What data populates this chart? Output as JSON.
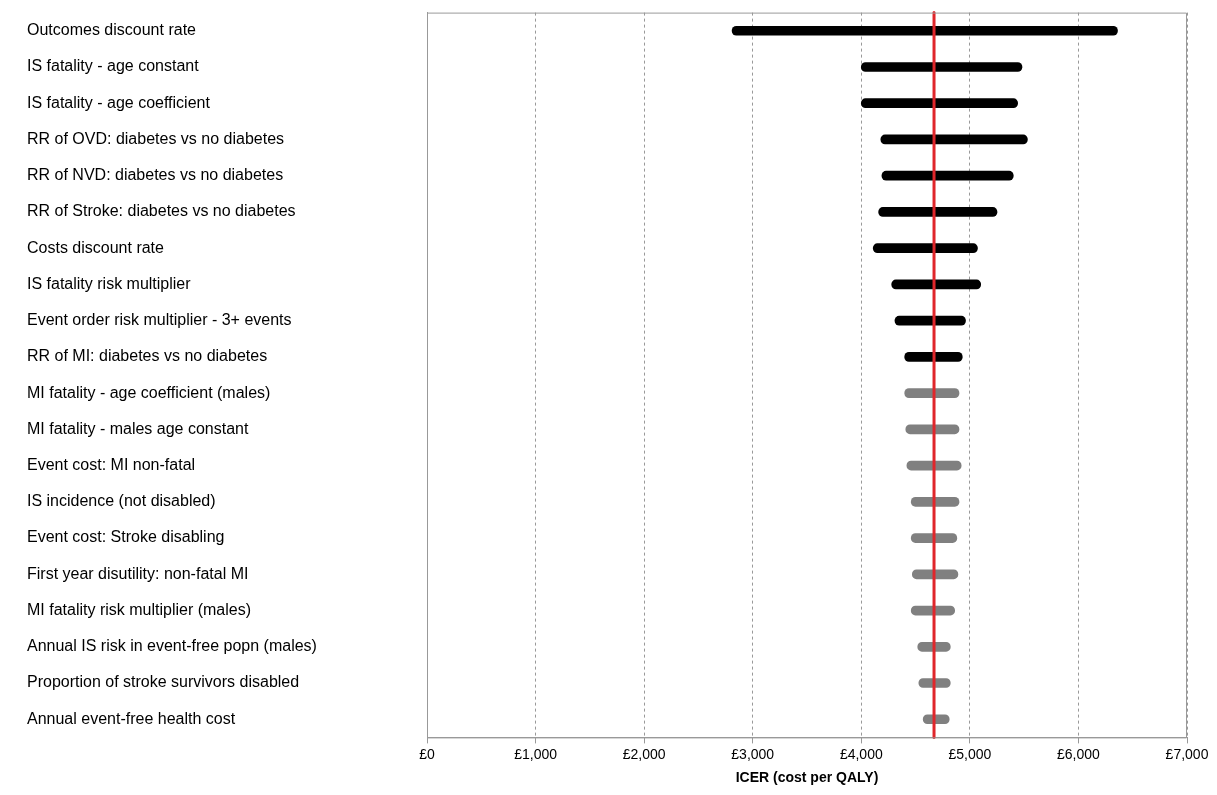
{
  "chart_data": {
    "type": "bar",
    "orientation": "horizontal",
    "xlabel": "ICER (cost per QALY)",
    "categories": [
      "Outcomes discount rate",
      "IS fatality - age constant",
      "IS fatality - age coefficient",
      "RR of OVD: diabetes vs no diabetes",
      "RR of NVD: diabetes vs no diabetes",
      "RR of Stroke: diabetes vs no diabetes",
      "Costs discount rate",
      "IS fatality risk multiplier",
      "Event order risk multiplier - 3+ events",
      "RR of MI: diabetes vs no diabetes",
      "MI fatality - age coefficient (males)",
      "MI fatality - males age constant",
      "Event cost: MI non-fatal",
      "IS incidence (not disabled)",
      "Event cost: Stroke disabling",
      "First year disutility: non-fatal MI",
      "MI fatality risk multiplier (males)",
      "Annual IS risk in event-free popn (males)",
      "Proportion of stroke survivors disabled",
      "Annual event-free health cost"
    ],
    "base": [
      2810,
      4000,
      4000,
      4180,
      4190,
      4160,
      4110,
      4280,
      4310,
      4400,
      4400,
      4410,
      4420,
      4460,
      4460,
      4470,
      4460,
      4520,
      4530,
      4570
    ],
    "values": [
      3550,
      1480,
      1440,
      1350,
      1210,
      1090,
      960,
      820,
      650,
      530,
      500,
      490,
      500,
      440,
      420,
      420,
      400,
      300,
      290,
      240
    ],
    "colors": [
      "#000000",
      "#000000",
      "#000000",
      "#000000",
      "#000000",
      "#000000",
      "#000000",
      "#000000",
      "#000000",
      "#000000",
      "#808080",
      "#808080",
      "#808080",
      "#808080",
      "#808080",
      "#808080",
      "#808080",
      "#808080",
      "#808080",
      "#808080"
    ],
    "xlim": [
      0,
      7000
    ],
    "xticks": [
      {
        "value": 0,
        "label": "£0"
      },
      {
        "value": 1000,
        "label": "£1,000"
      },
      {
        "value": 2000,
        "label": "£2,000"
      },
      {
        "value": 3000,
        "label": "£3,000"
      },
      {
        "value": 4000,
        "label": "£4,000"
      },
      {
        "value": 5000,
        "label": "£5,000"
      },
      {
        "value": 6000,
        "label": "£6,000"
      },
      {
        "value": 7000,
        "label": "£7,000"
      }
    ],
    "grid": "x",
    "legend": false,
    "ref_lines": [
      {
        "axis": "x",
        "value": 4670,
        "color": "#e0262b"
      }
    ]
  }
}
